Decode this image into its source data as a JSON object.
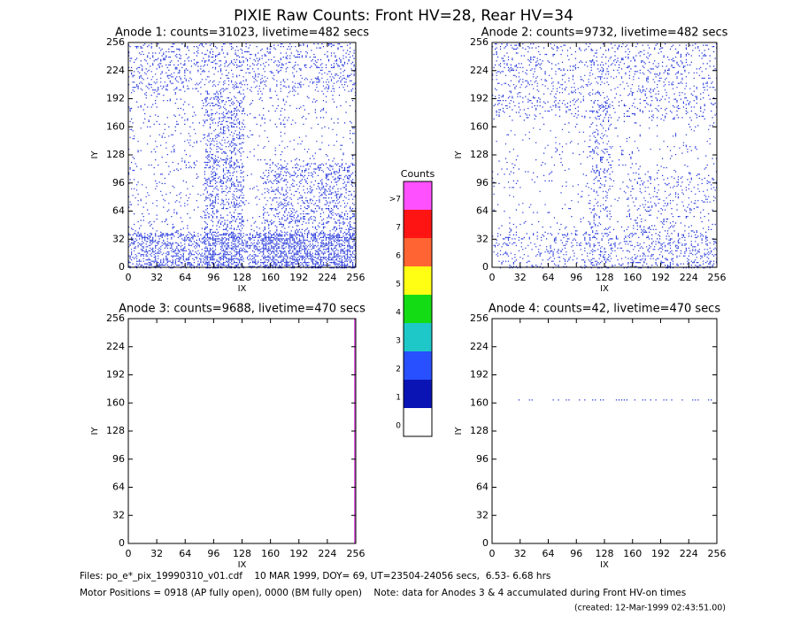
{
  "chart_data": {
    "type": "heatmap",
    "title": "PIXIE Raw Counts:  Front HV=28, Rear HV=34",
    "panels": [
      {
        "title": "Anode 1: counts=31023, livetime=482 secs",
        "xlabel": "IX",
        "ylabel": "IY"
      },
      {
        "title": "Anode 2: counts=9732, livetime=482 secs",
        "xlabel": "IX",
        "ylabel": "IY"
      },
      {
        "title": "Anode 3: counts=9688, livetime=470 secs",
        "xlabel": "IX",
        "ylabel": "IY"
      },
      {
        "title": "Anode 4: counts=42, livetime=470 secs",
        "xlabel": "IX",
        "ylabel": "IY"
      }
    ],
    "xlim": [
      0,
      256
    ],
    "ylim": [
      0,
      256
    ],
    "xticks": [
      0,
      32,
      64,
      96,
      128,
      160,
      192,
      224,
      256
    ],
    "yticks": [
      0,
      32,
      64,
      96,
      128,
      160,
      192,
      224,
      256
    ],
    "colorbar": {
      "title": "Counts",
      "labels": [
        "0",
        "1",
        "2",
        "3",
        "4",
        "5",
        "6",
        "7",
        ">7"
      ],
      "colors": [
        "#ffffff",
        "#0a14b4",
        "#2850ff",
        "#1ec8c8",
        "#14dc14",
        "#ffff14",
        "#ff6432",
        "#ff1414",
        "#ff50ff"
      ]
    }
  },
  "footer": {
    "lines": [
      "Files: po_e*_pix_19990310_v01.cdf    10 MAR 1999, DOY= 69, UT=23504-24056 secs,  6.53- 6.68 hrs",
      "Motor Positions = 0918 (AP fully open), 0000 (BM fully open)    Note: data for Anodes 3 & 4 accumulated during Front HV-on times"
    ],
    "created": "(created: 12-Mar-1999 02:43:51.00)"
  }
}
